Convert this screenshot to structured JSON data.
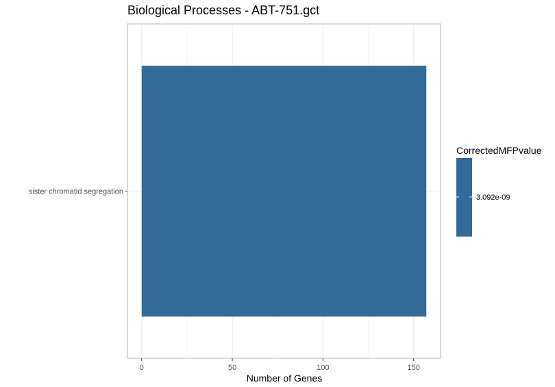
{
  "chart_data": {
    "type": "bar",
    "orientation": "horizontal",
    "title": "Biological Processes - ABT-751.gct",
    "xlabel": "Number of Genes",
    "ylabel": "",
    "categories": [
      "sister chromatid segregation"
    ],
    "values": [
      157
    ],
    "xlim": [
      -7.85,
      164.85
    ],
    "xticks": [
      0,
      50,
      100,
      150
    ],
    "xtick_labels": [
      "0",
      "50",
      "100",
      "150"
    ],
    "grid": true,
    "bar_color": "#336a98",
    "legend": {
      "title": "CorrectedMFPvalue",
      "position": "right",
      "type": "colorbar",
      "labels": [
        "3.092e-09"
      ],
      "color": "#336a98"
    }
  }
}
